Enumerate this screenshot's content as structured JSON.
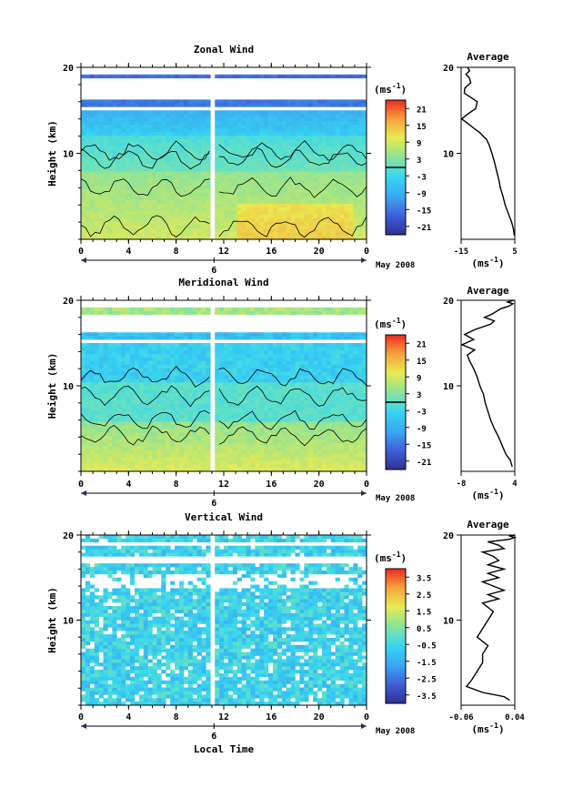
{
  "chart_data": [
    {
      "type": "heatmap",
      "title": "Zonal Wind",
      "ylabel": "Height (km)",
      "ylim": [
        0,
        20
      ],
      "y_ticks": [
        10,
        20
      ],
      "x_ticks": [
        "0",
        "4",
        "8",
        "12",
        "16",
        "20",
        "0"
      ],
      "date_marker": "6",
      "date_label": "May 2008",
      "colorbar": {
        "unit_base": "(ms",
        "unit_exp": "-1",
        "unit_close": ")",
        "ticks": [
          "21",
          "15",
          "9",
          "3",
          "-3",
          "-9",
          "-15",
          "-21"
        ],
        "range": [
          -24,
          24
        ],
        "zero_line": true
      },
      "profile": {
        "title": "Average",
        "xlim": [
          -15,
          5
        ],
        "x_ticks": [
          "-15",
          "5"
        ],
        "y_ticks": [
          "10",
          "20"
        ],
        "xlabel_base": "(ms",
        "xlabel_exp": "-1",
        "xlabel_close": ")",
        "x": [
          4.8,
          4.5,
          3.8,
          2.6,
          1.4,
          0.6,
          -0.4,
          -1.0,
          -1.8,
          -2.6,
          -3.5,
          -4.6,
          -5.5,
          -6.8,
          -8.0,
          -9.8,
          -12.2,
          -14.8,
          -12.4,
          -9.6,
          -9.0,
          -13.8,
          -13.6,
          -11.4,
          -12.0,
          -13.2,
          -11.8,
          -12.6
        ],
        "y": [
          0.5,
          1.2,
          2.0,
          3.0,
          4.0,
          5.0,
          6.0,
          7.0,
          8.0,
          9.0,
          10.0,
          11.0,
          11.6,
          12.0,
          12.4,
          12.8,
          13.4,
          14.0,
          14.6,
          15.2,
          16.0,
          17.0,
          17.6,
          18.2,
          18.8,
          19.2,
          19.6,
          20.0
        ]
      }
    },
    {
      "type": "heatmap",
      "title": "Meridional Wind",
      "ylabel": "Height (km)",
      "ylim": [
        0,
        20
      ],
      "y_ticks": [
        10,
        20
      ],
      "x_ticks": [
        "0",
        "4",
        "8",
        "12",
        "16",
        "20",
        "0"
      ],
      "date_marker": "6",
      "date_label": "May 2008",
      "colorbar": {
        "unit_base": "(ms",
        "unit_exp": "-1",
        "unit_close": ")",
        "ticks": [
          "21",
          "15",
          "9",
          "3",
          "-3",
          "-9",
          "-15",
          "-21"
        ],
        "range": [
          -24,
          24
        ],
        "zero_line": true
      },
      "profile": {
        "title": "Average",
        "xlim": [
          -8,
          4
        ],
        "x_ticks": [
          "-8",
          "4"
        ],
        "y_ticks": [
          "10",
          "20"
        ],
        "xlabel_base": "(ms",
        "xlabel_exp": "-1",
        "xlabel_close": ")",
        "x": [
          3.4,
          3.0,
          2.0,
          1.2,
          0.4,
          -0.6,
          -1.4,
          -2.0,
          -2.6,
          -3.0,
          -3.8,
          -4.4,
          -5.2,
          -6.2,
          -6.6,
          -5.0,
          -7.8,
          -5.2,
          -7.2,
          -4.8,
          -1.4,
          -0.6,
          -2.8,
          -1.0,
          0.2,
          0.8,
          2.6,
          3.6,
          2.4,
          3.8
        ],
        "y": [
          0.6,
          1.3,
          2.0,
          3.0,
          4.0,
          5.0,
          6.0,
          7.0,
          8.0,
          9.0,
          10.0,
          11.0,
          12.0,
          13.0,
          13.6,
          14.2,
          14.8,
          15.4,
          16.0,
          16.6,
          17.2,
          17.6,
          18.0,
          18.4,
          18.8,
          19.0,
          19.3,
          19.6,
          19.8,
          20.0
        ]
      }
    },
    {
      "type": "heatmap",
      "title": "Vertical Wind",
      "ylabel": "Height (km)",
      "xlabel": "Local Time",
      "ylim": [
        0,
        20
      ],
      "y_ticks": [
        10,
        20
      ],
      "x_ticks": [
        "0",
        "4",
        "8",
        "12",
        "16",
        "20",
        "0"
      ],
      "date_marker": "6",
      "date_label": "May 2008",
      "colorbar": {
        "unit_base": "(ms",
        "unit_exp": "-1",
        "unit_close": ")",
        "ticks": [
          "3.5",
          "2.5",
          "1.5",
          "0.5",
          "-0.5",
          "-1.5",
          "-2.5",
          "-3.5"
        ],
        "range": [
          -4,
          4
        ],
        "zero_line": false
      },
      "profile": {
        "title": "Average",
        "xlim": [
          -0.06,
          0.04
        ],
        "x_ticks": [
          "-0.06",
          "0.04"
        ],
        "y_ticks": [
          "10",
          "20"
        ],
        "xlabel_base": "(ms",
        "xlabel_exp": "-1",
        "xlabel_close": ")",
        "x": [
          0.03,
          0.02,
          -0.02,
          -0.05,
          -0.04,
          -0.03,
          -0.02,
          -0.02,
          -0.01,
          -0.03,
          -0.02,
          -0.01,
          0.0,
          -0.02,
          0.01,
          -0.01,
          0.02,
          0.0,
          -0.02,
          0.01,
          -0.01,
          0.02,
          -0.01,
          0.01,
          0.0,
          -0.02,
          0.02,
          0.01,
          -0.01,
          0.03,
          0.04,
          0.03,
          0.04
        ],
        "y": [
          0.6,
          1.0,
          1.5,
          2.2,
          3.0,
          4.0,
          5.0,
          6.0,
          7.0,
          8.0,
          9.0,
          10.0,
          11.0,
          12.0,
          12.5,
          13.0,
          13.5,
          14.0,
          14.5,
          15.0,
          15.5,
          16.0,
          16.5,
          17.0,
          17.5,
          18.0,
          18.4,
          18.8,
          19.2,
          19.5,
          19.7,
          19.9,
          20.0
        ]
      }
    }
  ]
}
